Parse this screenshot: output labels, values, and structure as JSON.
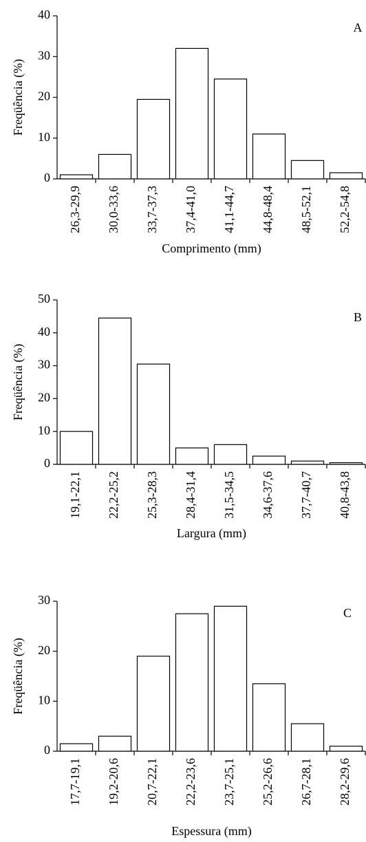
{
  "chart_data": [
    {
      "type": "bar",
      "panel": "A",
      "ylabel": "Freqüência (%)",
      "xlabel": "Comprimento (mm)",
      "categories": [
        "26,3-29,9",
        "30,0-33,6",
        "33,7-37,3",
        "37,4-41,0",
        "41,1-44,7",
        "44,8-48,4",
        "48,5-52,1",
        "52,2-54,8"
      ],
      "values": [
        1,
        6,
        19.5,
        32,
        24.5,
        11,
        4.5,
        1.5
      ],
      "color": "#ffffff",
      "ylim": [
        0,
        40
      ],
      "yticks": [
        0,
        10,
        20,
        30,
        40
      ]
    },
    {
      "type": "bar",
      "panel": "B",
      "ylabel": "Freqüência (%)",
      "xlabel": "Largura (mm)",
      "categories": [
        "19,1-22,1",
        "22,2-25,2",
        "25,3-28,3",
        "28,4-31,4",
        "31,5-34,5",
        "34,6-37,6",
        "37,7-40,7",
        "40,8-43,8"
      ],
      "values": [
        10,
        44.5,
        30.5,
        5,
        6,
        2.5,
        1,
        0.5
      ],
      "color": "#ffffff",
      "ylim": [
        0,
        50
      ],
      "yticks": [
        0,
        10,
        20,
        30,
        40,
        50
      ]
    },
    {
      "type": "bar",
      "panel": "C",
      "ylabel": "Freqüência (%)",
      "xlabel": "Espessura (mm)",
      "categories": [
        "17,7-19,1",
        "19,2-20,6",
        "20,7-22,1",
        "22,2-23,6",
        "23,7-25,1",
        "25,2-26,6",
        "26,7-28,1",
        "28,2-29,6"
      ],
      "values": [
        1.5,
        3,
        19,
        27.5,
        29,
        13.5,
        5.5,
        1
      ],
      "color": "#ffffff",
      "ylim": [
        0,
        30
      ],
      "yticks": [
        0,
        10,
        20,
        30
      ]
    }
  ]
}
